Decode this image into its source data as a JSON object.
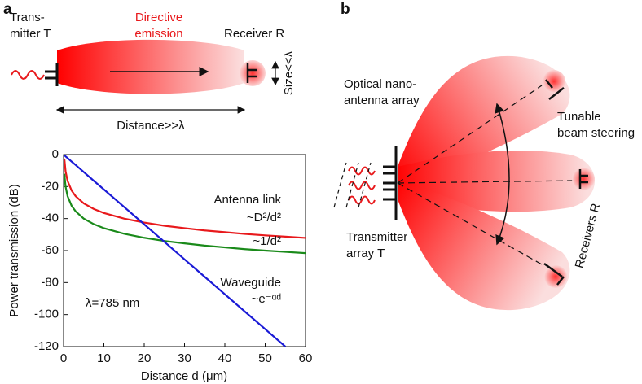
{
  "panel_a": {
    "label": "a",
    "transmitter": [
      "Trans-",
      "mitter T"
    ],
    "emission": [
      "Directive",
      "emission"
    ],
    "receiver": "Receiver R",
    "size": "Size<<λ",
    "distance": "Distance>>λ"
  },
  "chart_data": {
    "type": "line",
    "x_label": "Distance d (μm)",
    "y_label": "Power transmission (dB)",
    "x": [
      0.2,
      0.5,
      1,
      2,
      3,
      5,
      7.5,
      10,
      15,
      20,
      25,
      30,
      35,
      40,
      45,
      50,
      55,
      60
    ],
    "series": [
      {
        "name": "~D²/d²",
        "color": "#e8191c",
        "values": [
          -2.5,
          -10.5,
          -16.5,
          -22.5,
          -26.0,
          -30.5,
          -34.0,
          -36.5,
          -40.0,
          -42.5,
          -44.5,
          -46.0,
          -47.4,
          -48.5,
          -49.6,
          -50.5,
          -51.3,
          -52.1
        ]
      },
      {
        "name": "~1/d²",
        "color": "#1a8a1a",
        "values": [
          -12,
          -20,
          -26,
          -32,
          -35.5,
          -40,
          -43.5,
          -46,
          -49.5,
          -52,
          -54,
          -55.5,
          -56.9,
          -58,
          -59.1,
          -60,
          -60.8,
          -61.6
        ]
      },
      {
        "name": "~e⁻ᵅᵈ",
        "color": "#1a1ad6",
        "values": [
          -0.4,
          -1.1,
          -2.2,
          -4.4,
          -6.5,
          -10.9,
          -16.4,
          -21.8,
          -32.7,
          -43.6,
          -54.5,
          -65.5,
          -76.4,
          -87.3,
          -98.2,
          -109.1,
          -120,
          null
        ]
      }
    ],
    "xlim": [
      0,
      60
    ],
    "ylim": [
      -120,
      0
    ],
    "xticks": [
      0,
      10,
      20,
      30,
      40,
      50,
      60
    ],
    "yticks": [
      0,
      -20,
      -40,
      -60,
      -80,
      -100,
      -120
    ],
    "annotations": [
      "Antenna link",
      "Waveguide",
      "λ=785 nm"
    ]
  },
  "panel_b": {
    "label": "b",
    "antenna": [
      "Optical nano-",
      "antenna array"
    ],
    "steering": [
      "Tunable",
      "beam steering"
    ],
    "transmitter": [
      "Transmitter",
      "array T"
    ],
    "receivers": "Receivers R"
  }
}
